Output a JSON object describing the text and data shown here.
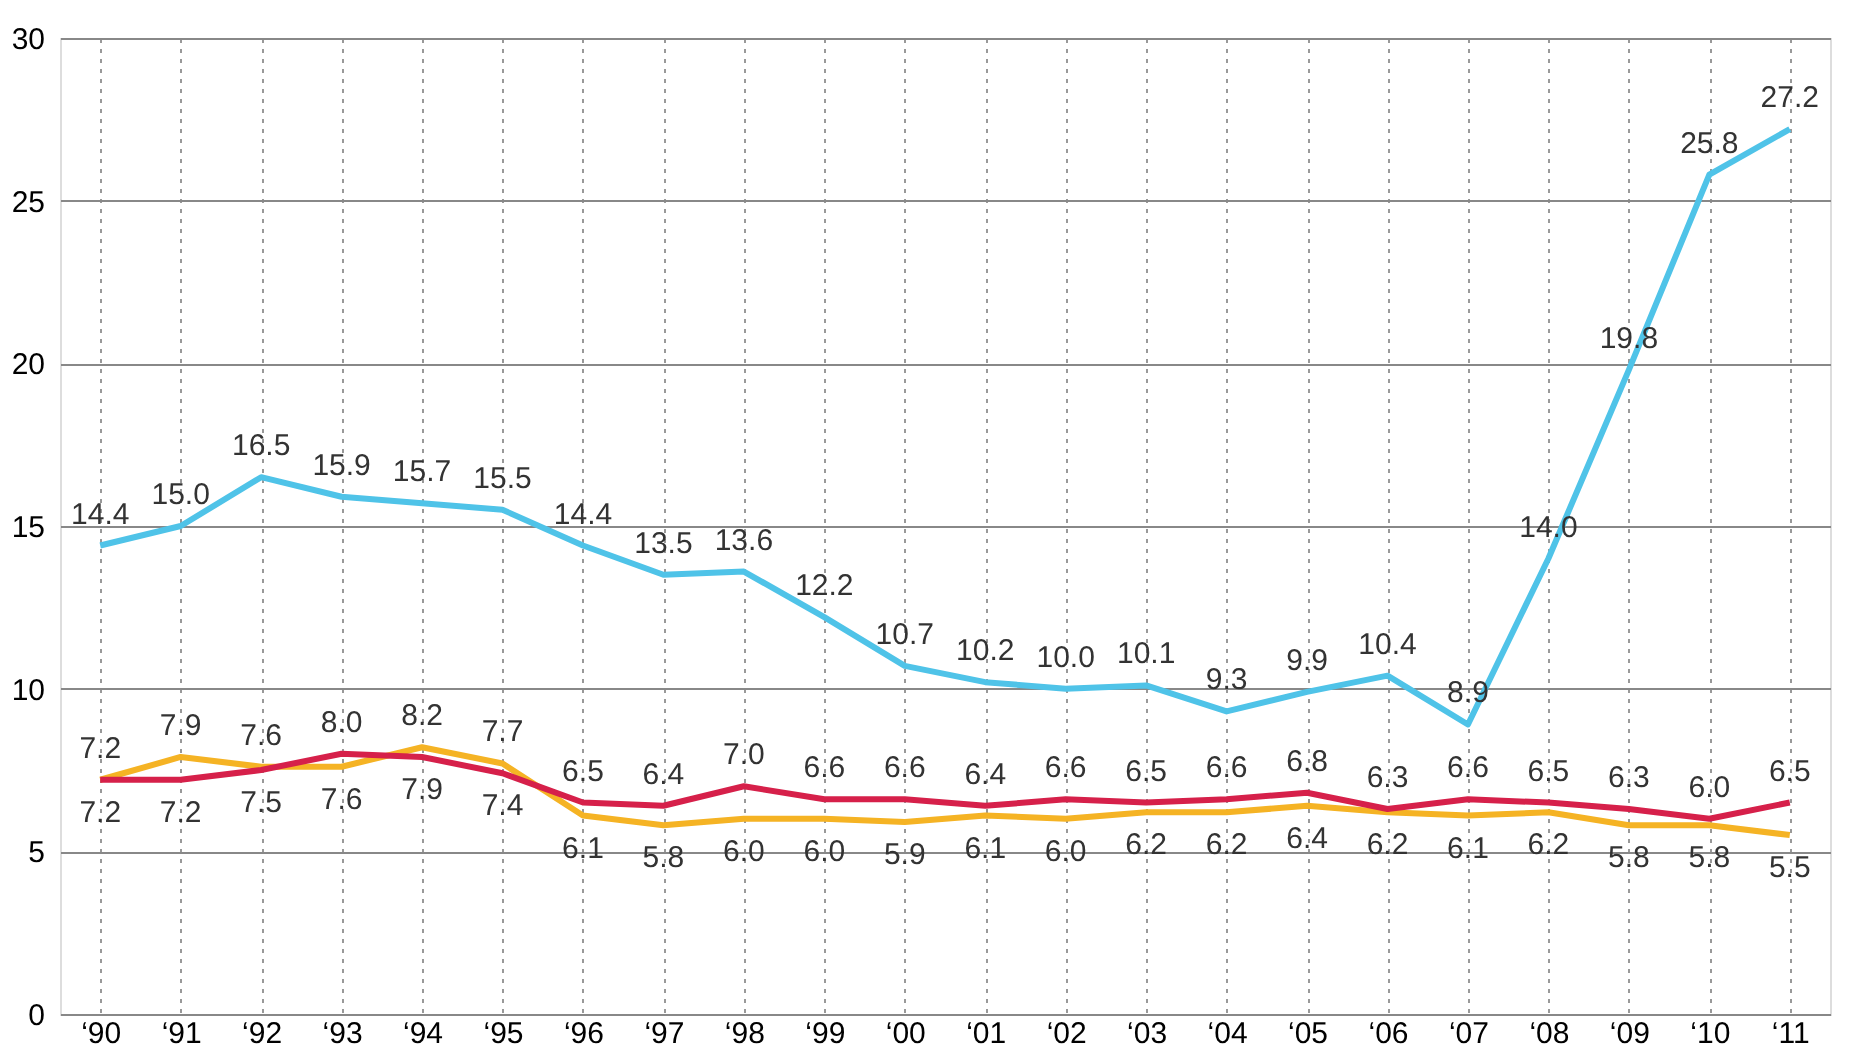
{
  "chart_data": {
    "type": "line",
    "categories": [
      "‘90",
      "‘91",
      "‘92",
      "‘93",
      "‘94",
      "‘95",
      "‘96",
      "‘97",
      "‘98",
      "‘99",
      "‘00",
      "‘01",
      "‘02",
      "‘03",
      "‘04",
      "‘05",
      "‘06",
      "‘07",
      "‘08",
      "‘09",
      "‘10",
      "‘11"
    ],
    "series": [
      {
        "color": "#4fc3e8",
        "values": [
          14.4,
          15.0,
          16.5,
          15.9,
          15.7,
          15.5,
          14.4,
          13.5,
          13.6,
          12.2,
          10.7,
          10.2,
          10.0,
          10.1,
          9.3,
          9.9,
          10.4,
          8.9,
          14.0,
          19.8,
          25.8,
          27.2
        ],
        "value_labels": [
          "14.4",
          "15.0",
          "16.5",
          "15.9",
          "15.7",
          "15.5",
          "14.4",
          "13.5",
          "13.6",
          "12.2",
          "10.7",
          "10.2",
          "10.0",
          "10.1",
          "9.3",
          "9.9",
          "10.4",
          "8.9",
          "14.0",
          "19.8",
          "25.8",
          "27.2"
        ]
      },
      {
        "color": "#f5b324",
        "values": [
          7.2,
          7.9,
          7.6,
          7.6,
          8.2,
          7.7,
          6.1,
          5.8,
          6.0,
          6.0,
          5.9,
          6.1,
          6.0,
          6.2,
          6.2,
          6.4,
          6.2,
          6.1,
          6.2,
          5.8,
          5.8,
          5.5
        ],
        "value_labels": [
          "7.2",
          "7.9",
          "7.6",
          "7.6",
          "8.2",
          "7.7",
          "6.1",
          "5.8",
          "6.0",
          "6.0",
          "5.9",
          "6.1",
          "6.0",
          "6.2",
          "6.2",
          "6.4",
          "6.2",
          "6.1",
          "6.2",
          "5.8",
          "5.8",
          "5.5"
        ]
      },
      {
        "color": "#d6204a",
        "values": [
          7.2,
          7.2,
          7.5,
          8.0,
          7.9,
          7.4,
          6.5,
          6.4,
          7.0,
          6.6,
          6.6,
          6.4,
          6.6,
          6.5,
          6.6,
          6.8,
          6.3,
          6.6,
          6.5,
          6.3,
          6.0,
          6.5
        ],
        "value_labels": [
          "7.2",
          "7.2",
          "7.5",
          "8.0",
          "7.9",
          "7.4",
          "6.5",
          "6.4",
          "7.0",
          "6.6",
          "6.6",
          "6.4",
          "6.6",
          "6.5",
          "6.6",
          "6.8",
          "6.3",
          "6.6",
          "6.5",
          "6.3",
          "6.0",
          "6.5"
        ]
      }
    ],
    "ylim": [
      0,
      30
    ],
    "yticks": [
      0,
      5,
      10,
      15,
      20,
      25,
      30
    ],
    "grid": true,
    "legend": false,
    "marker": "none",
    "line_style": "solid"
  }
}
